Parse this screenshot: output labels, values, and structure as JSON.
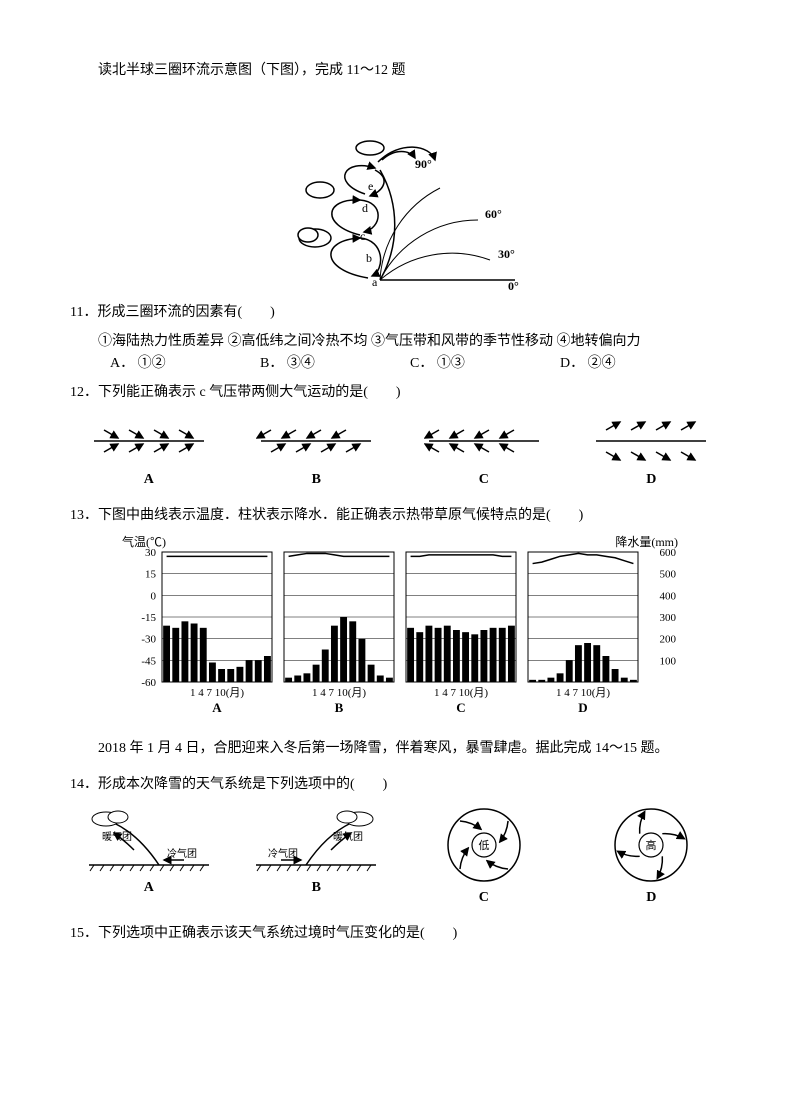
{
  "intro1": "读北半球三圈环流示意图（下图），完成 11～12 题",
  "fig1": {
    "labels": {
      "a": "a",
      "b": "b",
      "c": "c",
      "d": "d",
      "e": "e",
      "d90": "90°",
      "d60": "60°",
      "d30": "30°",
      "d0": "0°"
    },
    "stroke": "#000000",
    "fill": "#ffffff"
  },
  "q11": {
    "stem": "11．形成三圈环流的因素有(　　)",
    "line2": "①海陆热力性质差异 ②高低纬之间冷热不均 ③气压带和风带的季节性移动 ④地转偏向力",
    "A": "A．  ①②",
    "B": "B．  ③④",
    "C": "C．  ①③",
    "D": "D．  ②④"
  },
  "q12": {
    "stem": "12．下列能正确表示 c 气压带两侧大气运动的是(　　)"
  },
  "arrowFigs": {
    "labels": [
      "A",
      "B",
      "C",
      "D"
    ],
    "stroke": "#000000"
  },
  "q13": {
    "stem": "13．下图中曲线表示温度．柱状表示降水．能正确表示热带草原气候特点的是(　　)"
  },
  "climates": {
    "ylabel_left": "气温(℃)",
    "ylabel_right": "降水量(mm)",
    "yticks_t": [
      "30",
      "15",
      "0",
      "-15",
      "-30",
      "-45",
      "-60"
    ],
    "yticks_p": [
      "600",
      "500",
      "400",
      "300",
      "200",
      "100"
    ],
    "xlabels": "1  4  7  10(月)",
    "labels": [
      "A",
      "B",
      "C",
      "D"
    ],
    "series": {
      "A": {
        "temp": [
          27,
          27,
          27,
          27,
          27,
          27,
          27,
          27,
          27,
          27,
          27,
          27
        ],
        "prec": [
          260,
          250,
          280,
          270,
          250,
          90,
          60,
          60,
          70,
          100,
          100,
          120
        ]
      },
      "B": {
        "temp": [
          27,
          28,
          29,
          29,
          29,
          28,
          27,
          27,
          27,
          27,
          27,
          27
        ],
        "prec": [
          20,
          30,
          40,
          80,
          150,
          260,
          300,
          280,
          200,
          80,
          30,
          20
        ]
      },
      "C": {
        "temp": [
          27,
          27,
          28,
          28,
          28,
          28,
          28,
          28,
          28,
          28,
          27,
          27
        ],
        "prec": [
          250,
          230,
          260,
          250,
          260,
          240,
          230,
          220,
          240,
          250,
          250,
          260
        ]
      },
      "D": {
        "temp": [
          22,
          23,
          25,
          27,
          28,
          29,
          28,
          28,
          27,
          26,
          24,
          22
        ],
        "prec": [
          10,
          10,
          20,
          40,
          100,
          170,
          180,
          170,
          120,
          60,
          20,
          10
        ]
      }
    },
    "t_range": [
      -60,
      30
    ],
    "p_range": [
      0,
      600
    ],
    "colors": {
      "bar": "#000000",
      "line": "#000000",
      "grid": "#000000"
    }
  },
  "intro2": "2018 年 1 月 4 日，合肥迎来入冬后第一场降雪，伴着寒风，暴雪肆虐。据此完成 14～15 题。",
  "q14": {
    "stem": "14．形成本次降雪的天气系统是下列选项中的(　　)"
  },
  "weatherFigs": {
    "labels": [
      "A",
      "B",
      "C",
      "D"
    ],
    "A": {
      "warm": "暖气团",
      "cold": "冷气团"
    },
    "B": {
      "warm": "暖气团",
      "cold": "冷气团"
    },
    "C": {
      "center": "低"
    },
    "D": {
      "center": "高"
    }
  },
  "q15": {
    "stem": "15．下列选项中正确表示该天气系统过境时气压变化的是(　　)"
  }
}
